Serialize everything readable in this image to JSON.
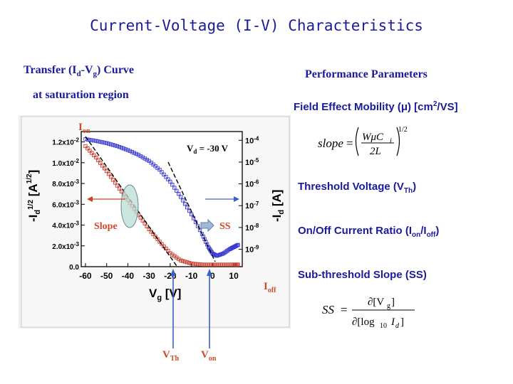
{
  "title": "Current-Voltage (I-V) Characteristics",
  "left_header": {
    "line1_main": "Transfer (I",
    "line1_sub1": "d",
    "line1_mid": "-V",
    "line1_sub2": "g",
    "line1_end": ") Curve",
    "line2": "at saturation region"
  },
  "right_header": "Performance Parameters",
  "parameters": {
    "mobility": {
      "main": "Field Effect Mobility (μ) [cm",
      "sup": "2",
      "end": "/VS]"
    },
    "threshold": {
      "main": "Threshold Voltage (V",
      "sub": "Th",
      "end": ")"
    },
    "onoff": {
      "main": "On/Off Current Ratio (I",
      "sub1": "on",
      "mid": "/I",
      "sub2": "off",
      "end": ")"
    },
    "ss": {
      "label": "Sub-threshold Slope (SS)"
    }
  },
  "formulas": {
    "slope": {
      "lhs": "slope",
      "eq": "=",
      "num": "WμC",
      "num_sub": "i",
      "den": "2L",
      "exp": "1/2"
    },
    "ss": {
      "lhs": "SS",
      "eq": "=",
      "num": "∂[V",
      "num_sub": "g",
      "num_end": "]",
      "den": "∂[log",
      "den_sub": "10",
      "den_end": "I",
      "den_sub2": "d",
      "den_close": "]"
    }
  },
  "plot_labels": {
    "i_on": "I",
    "i_on_sub": "on",
    "i_off": "I",
    "i_off_sub": "off",
    "vd": "V",
    "vd_sub": "d",
    "vd_val": " = -30 V",
    "slope": "Slope",
    "ss": "SS",
    "vth": "V",
    "vth_sub": "Th",
    "von": "V",
    "von_sub": "on",
    "ylabel_left": "-I",
    "ylabel_left_sub": "d",
    "ylabel_left_sup": "1/2",
    "ylabel_left_unit": " [A",
    "ylabel_left_unit_sup": "1/2",
    "ylabel_left_close": "]",
    "ylabel_right": "-I",
    "ylabel_right_sub": "d",
    "ylabel_right_unit": " [A]",
    "xlabel": "V",
    "xlabel_sub": "g",
    "xlabel_unit": " [V]"
  },
  "chart_data": {
    "type": "line",
    "xlabel": "Vg [V]",
    "ylabel_left": "-Id^1/2 [A^1/2]",
    "ylabel_right": "-Id [A]",
    "x_ticks": [
      "-60",
      "-50",
      "-40",
      "-30",
      "-20",
      "-10",
      "0",
      "10"
    ],
    "xlim": [
      -62,
      14
    ],
    "y_left_ticks": [
      "0.0",
      "2.0x10-3",
      "4.0x10-3",
      "6.0x10-3",
      "8.0x10-3",
      "1.0x10-2",
      "1.2x10-2"
    ],
    "y_left_lim": [
      0,
      0.013
    ],
    "y_right_ticks": [
      "10-9",
      "10-8",
      "10-7",
      "10-6",
      "10-5",
      "10-4"
    ],
    "y_right_lim_log": [
      -9.8,
      -3.6
    ],
    "annotation": "Vd = -30 V",
    "series": [
      {
        "name": "",
        "axis": "right",
        "color": "#3a3ad0",
        "x": [
          -60,
          -55,
          -50,
          -45,
          -40,
          -35,
          -30,
          -25,
          -20,
          -15,
          -10,
          -5,
          -2,
          0,
          2,
          5,
          8,
          10,
          12
        ],
        "y_log10": [
          -3.95,
          -4.03,
          -4.13,
          -4.27,
          -4.45,
          -4.67,
          -4.95,
          -5.35,
          -5.9,
          -6.6,
          -7.4,
          -8.3,
          -8.9,
          -9.2,
          -9.3,
          -9.2,
          -9.0,
          -8.9,
          -8.8
        ]
      },
      {
        "name": "",
        "axis": "left",
        "color": "#c83a2a",
        "x": [
          -60,
          -55,
          -50,
          -45,
          -40,
          -35,
          -30,
          -25,
          -20,
          -15,
          -10,
          -5,
          0,
          5,
          10,
          12
        ],
        "y": [
          0.0116,
          0.0105,
          0.0092,
          0.0078,
          0.0064,
          0.005,
          0.0036,
          0.0024,
          0.0013,
          0.0006,
          0.0003,
          0.0002,
          0.0002,
          0.0002,
          0.0002,
          0.0002
        ]
      }
    ]
  }
}
